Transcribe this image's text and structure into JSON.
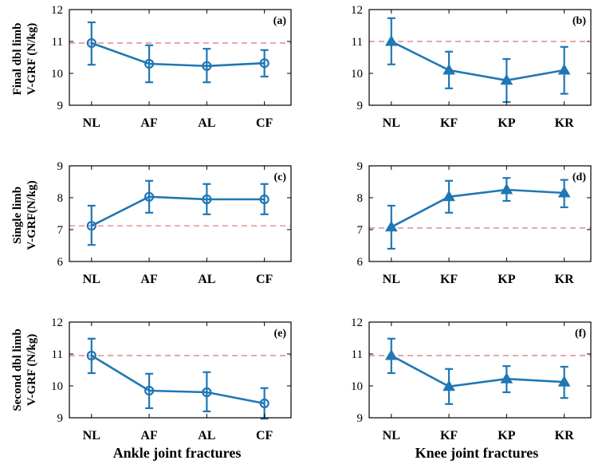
{
  "figure": {
    "ylabels": [
      [
        "Final dbl limb",
        "V-GRF (N/kg)"
      ],
      [
        "Single limb",
        "V-GRF(N/kg)"
      ],
      [
        "Second dbl limb",
        "V-GRF (N/kg)"
      ]
    ],
    "xlabels": [
      "Ankle joint fractures",
      "Knee joint fractures"
    ]
  },
  "colors": {
    "series": "#1f77b4",
    "reference": "#e07070",
    "axis": "#000000"
  },
  "chart_data": [
    {
      "label": "(a)",
      "type": "line",
      "marker": "circle",
      "categories": [
        "NL",
        "AF",
        "AL",
        "CF"
      ],
      "values": [
        10.95,
        10.3,
        10.23,
        10.32
      ],
      "err_low": [
        10.27,
        9.72,
        9.72,
        9.9
      ],
      "err_high": [
        11.6,
        10.88,
        10.77,
        10.73
      ],
      "reference": 10.95,
      "ylim": [
        9,
        12
      ],
      "yticks": [
        "9",
        "10",
        "11",
        "12"
      ]
    },
    {
      "label": "(b)",
      "type": "line",
      "marker": "triangle",
      "categories": [
        "NL",
        "KF",
        "KP",
        "KR"
      ],
      "values": [
        11.0,
        10.1,
        9.78,
        10.1
      ],
      "err_low": [
        10.28,
        9.53,
        9.1,
        9.36
      ],
      "err_high": [
        11.73,
        10.68,
        10.45,
        10.83
      ],
      "reference": 11.0,
      "ylim": [
        9,
        12
      ],
      "yticks": [
        "9",
        "10",
        "11",
        "12"
      ]
    },
    {
      "label": "(c)",
      "type": "line",
      "marker": "circle",
      "categories": [
        "NL",
        "AF",
        "AL",
        "CF"
      ],
      "values": [
        7.12,
        8.03,
        7.95,
        7.95
      ],
      "err_low": [
        6.52,
        7.53,
        7.48,
        7.48
      ],
      "err_high": [
        7.75,
        8.53,
        8.43,
        8.43
      ],
      "reference": 7.12,
      "ylim": [
        6,
        9
      ],
      "yticks": [
        "6",
        "7",
        "8",
        "9"
      ]
    },
    {
      "label": "(d)",
      "type": "line",
      "marker": "triangle",
      "categories": [
        "NL",
        "KF",
        "KP",
        "KR"
      ],
      "values": [
        7.08,
        8.03,
        8.25,
        8.15
      ],
      "err_low": [
        6.4,
        7.53,
        7.9,
        7.7
      ],
      "err_high": [
        7.75,
        8.53,
        8.62,
        8.56
      ],
      "reference": 7.05,
      "ylim": [
        6,
        9
      ],
      "yticks": [
        "6",
        "7",
        "8",
        "9"
      ]
    },
    {
      "label": "(e)",
      "type": "line",
      "marker": "circle",
      "categories": [
        "NL",
        "AF",
        "AL",
        "CF"
      ],
      "values": [
        10.95,
        9.85,
        9.8,
        9.45
      ],
      "err_low": [
        10.4,
        9.3,
        9.2,
        8.97
      ],
      "err_high": [
        11.48,
        10.38,
        10.43,
        9.93
      ],
      "reference": 10.95,
      "ylim": [
        9,
        12
      ],
      "yticks": [
        "9",
        "10",
        "11",
        "12"
      ]
    },
    {
      "label": "(f)",
      "type": "line",
      "marker": "triangle",
      "categories": [
        "NL",
        "KF",
        "KP",
        "KR"
      ],
      "values": [
        10.95,
        9.98,
        10.22,
        10.12
      ],
      "err_low": [
        10.4,
        9.43,
        9.8,
        9.62
      ],
      "err_high": [
        11.48,
        10.53,
        10.62,
        10.6
      ],
      "reference": 10.95,
      "ylim": [
        9,
        12
      ],
      "yticks": [
        "9",
        "10",
        "11",
        "12"
      ]
    }
  ]
}
